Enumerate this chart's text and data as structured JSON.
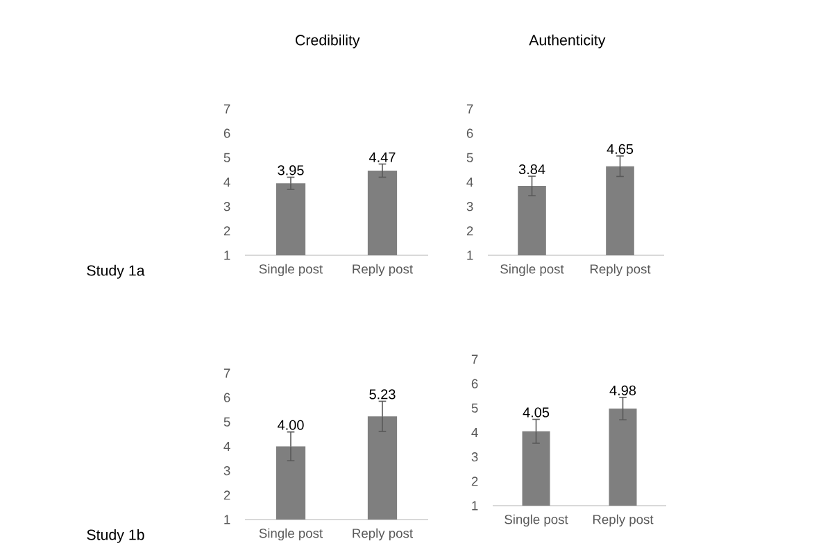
{
  "chart_data": [
    {
      "type": "bar",
      "title": "Credibility",
      "annotations": [
        "Study 1a"
      ],
      "categories": [
        "Single post",
        "Reply post"
      ],
      "values": [
        3.95,
        4.47
      ],
      "errors": [
        0.25,
        0.27
      ],
      "value_labels": [
        "3.95",
        "4.47"
      ],
      "color": "#7f7f7f",
      "ylim": [
        1,
        7
      ],
      "yticks": [
        1,
        2,
        3,
        4,
        5,
        6,
        7
      ]
    },
    {
      "type": "bar",
      "title": "Authenticity",
      "categories": [
        "Single post",
        "Reply post"
      ],
      "values": [
        3.84,
        4.65
      ],
      "errors": [
        0.4,
        0.42
      ],
      "value_labels": [
        "3.84",
        "4.65"
      ],
      "color": "#7f7f7f",
      "ylim": [
        1,
        7
      ],
      "yticks": [
        1,
        2,
        3,
        4,
        5,
        6,
        7
      ]
    },
    {
      "type": "bar",
      "annotations": [
        "Study 1b"
      ],
      "categories": [
        "Single post",
        "Reply post"
      ],
      "values": [
        4.0,
        5.23
      ],
      "errors": [
        0.59,
        0.62
      ],
      "value_labels": [
        "4.00",
        "5.23"
      ],
      "color": "#7f7f7f",
      "ylim": [
        1,
        7
      ],
      "yticks": [
        1,
        2,
        3,
        4,
        5,
        6,
        7
      ]
    },
    {
      "type": "bar",
      "categories": [
        "Single post",
        "Reply post"
      ],
      "values": [
        4.05,
        4.98
      ],
      "errors": [
        0.49,
        0.46
      ],
      "value_labels": [
        "4.05",
        "4.98"
      ],
      "color": "#7f7f7f",
      "ylim": [
        1,
        7
      ],
      "yticks": [
        1,
        2,
        3,
        4,
        5,
        6,
        7
      ]
    }
  ]
}
